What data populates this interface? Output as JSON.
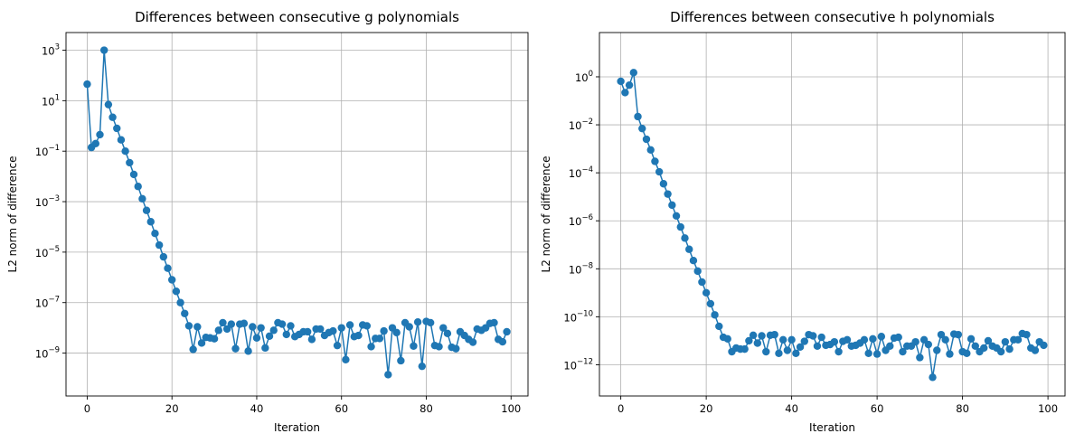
{
  "colors": {
    "series": "#1f77b4",
    "grid": "#b0b0b0"
  },
  "chart_data": [
    {
      "type": "line",
      "marker": "circle",
      "title": "Differences between consecutive g polynomials",
      "xlabel": "Iteration",
      "ylabel": "L2 norm of difference",
      "yscale": "log",
      "grid": true,
      "xlim": [
        -5,
        104
      ],
      "ylim": [
        2e-11,
        5000
      ],
      "xticks": [
        0,
        20,
        40,
        60,
        80,
        100
      ],
      "yticks_exp": [
        -9,
        -7,
        -5,
        -3,
        -1,
        1,
        3
      ],
      "series": [
        {
          "x": [
            0,
            1,
            2,
            3,
            4,
            5,
            6,
            7,
            8,
            9,
            10,
            11,
            12,
            13,
            14,
            15,
            16,
            17,
            18,
            19,
            20,
            21,
            22,
            23,
            24,
            25,
            26,
            27,
            28,
            29,
            30,
            31,
            32,
            33,
            34,
            35,
            36,
            37,
            38,
            39,
            40,
            41,
            42,
            43,
            44,
            45,
            46,
            47,
            48,
            49,
            50,
            51,
            52,
            53,
            54,
            55,
            56,
            57,
            58,
            59,
            60,
            61,
            62,
            63,
            64,
            65,
            66,
            67,
            68,
            69,
            70,
            71,
            72,
            73,
            74,
            75,
            76,
            77,
            78,
            79,
            80,
            81,
            82,
            83,
            84,
            85,
            86,
            87,
            88,
            89,
            90,
            91,
            92,
            93,
            94,
            95,
            96,
            97,
            98,
            99
          ],
          "y": [
            45,
            0.14,
            0.2,
            0.45,
            1000,
            7,
            2.2,
            0.8,
            0.28,
            0.1,
            0.035,
            0.012,
            0.004,
            0.0013,
            0.00045,
            0.00016,
            5.5e-05,
            1.9e-05,
            6.5e-06,
            2.3e-06,
            8e-07,
            2.8e-07,
            1e-07,
            3.7e-08,
            1.2e-08,
            1.4e-09,
            1.1e-08,
            2.5e-09,
            4.2e-09,
            4e-09,
            3.7e-09,
            8e-09,
            1.6e-08,
            9e-09,
            1.4e-08,
            1.5e-09,
            1.4e-08,
            1.5e-08,
            1.2e-09,
            1.1e-08,
            4e-09,
            1e-08,
            1.6e-09,
            4.7e-09,
            8e-09,
            1.6e-08,
            1.4e-08,
            5.5e-09,
            1.2e-08,
            4.5e-09,
            5.5e-09,
            7e-09,
            7e-09,
            3.5e-09,
            9e-09,
            9e-09,
            5e-09,
            6.5e-09,
            7.5e-09,
            2e-09,
            1e-08,
            5.5e-10,
            1.3e-08,
            4.5e-09,
            5e-09,
            1.3e-08,
            1.2e-08,
            1.8e-09,
            3.8e-09,
            3.8e-09,
            7.5e-09,
            1.4e-10,
            1e-08,
            6.5e-09,
            5e-10,
            1.6e-08,
            1.1e-08,
            1.9e-09,
            1.7e-08,
            3e-10,
            1.8e-08,
            1.6e-08,
            2e-09,
            1.8e-09,
            1e-08,
            6e-09,
            1.7e-09,
            1.5e-09,
            7e-09,
            5e-09,
            3.5e-09,
            2.7e-09,
            9e-09,
            8e-09,
            1e-08,
            1.5e-08,
            1.6e-08,
            3.5e-09,
            2.8e-09,
            7e-09
          ]
        }
      ]
    },
    {
      "type": "line",
      "marker": "circle",
      "title": "Differences between consecutive h polynomials",
      "xlabel": "Iteration",
      "ylabel": "L2 norm of difference",
      "yscale": "log",
      "grid": true,
      "xlim": [
        -5,
        104
      ],
      "ylim": [
        5e-14,
        70
      ],
      "xticks": [
        0,
        20,
        40,
        60,
        80,
        100
      ],
      "yticks_exp": [
        -12,
        -10,
        -8,
        -6,
        -4,
        -2,
        0
      ],
      "series": [
        {
          "x": [
            0,
            1,
            2,
            3,
            4,
            5,
            6,
            7,
            8,
            9,
            10,
            11,
            12,
            13,
            14,
            15,
            16,
            17,
            18,
            19,
            20,
            21,
            22,
            23,
            24,
            25,
            26,
            27,
            28,
            29,
            30,
            31,
            32,
            33,
            34,
            35,
            36,
            37,
            38,
            39,
            40,
            41,
            42,
            43,
            44,
            45,
            46,
            47,
            48,
            49,
            50,
            51,
            52,
            53,
            54,
            55,
            56,
            57,
            58,
            59,
            60,
            61,
            62,
            63,
            64,
            65,
            66,
            67,
            68,
            69,
            70,
            71,
            72,
            73,
            74,
            75,
            76,
            77,
            78,
            79,
            80,
            81,
            82,
            83,
            84,
            85,
            86,
            87,
            88,
            89,
            90,
            91,
            92,
            93,
            94,
            95,
            96,
            97,
            98,
            99
          ],
          "y": [
            0.65,
            0.22,
            0.45,
            1.5,
            0.022,
            0.007,
            0.0025,
            0.0009,
            0.0003,
            0.00011,
            3.5e-05,
            1.3e-05,
            4.5e-06,
            1.6e-06,
            5.5e-07,
            1.9e-07,
            6.5e-08,
            2.2e-08,
            8e-09,
            2.8e-09,
            1e-09,
            3.5e-10,
            1.2e-10,
            4e-11,
            1.4e-11,
            1.2e-11,
            3.5e-12,
            5e-12,
            4.5e-12,
            4.5e-12,
            1e-11,
            1.7e-11,
            8e-12,
            1.6e-11,
            3.5e-12,
            1.7e-11,
            1.8e-11,
            3e-12,
            1.1e-11,
            4e-12,
            1.1e-11,
            3e-12,
            5.5e-12,
            9.5e-12,
            1.8e-11,
            1.6e-11,
            6e-12,
            1.4e-11,
            6.5e-12,
            7e-12,
            9e-12,
            3.5e-12,
            9.5e-12,
            1.1e-11,
            6e-12,
            6.5e-12,
            8e-12,
            1.1e-11,
            3e-12,
            1.2e-11,
            2.8e-12,
            1.5e-11,
            4e-12,
            6e-12,
            1.3e-11,
            1.4e-11,
            3.5e-12,
            6e-12,
            6e-12,
            9e-12,
            2e-12,
            1.1e-11,
            7e-12,
            3e-13,
            4e-12,
            1.8e-11,
            1.1e-11,
            2.8e-12,
            1.9e-11,
            1.8e-11,
            3.5e-12,
            3e-12,
            1.2e-11,
            6e-12,
            3.5e-12,
            5e-12,
            1e-11,
            6e-12,
            5e-12,
            3.5e-12,
            9e-12,
            4.5e-12,
            1.1e-11,
            1.1e-11,
            2e-11,
            1.8e-11,
            5e-12,
            4e-12,
            9e-12,
            6.5e-12
          ]
        }
      ]
    }
  ]
}
